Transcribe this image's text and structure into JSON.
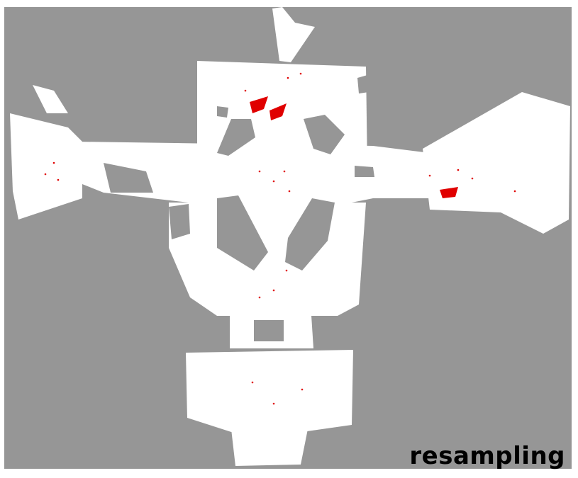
{
  "caption": "resampling",
  "colors": {
    "unknown": "#969696",
    "free": "#ffffff",
    "obstacle": "#969696",
    "particles": "#e00000"
  }
}
